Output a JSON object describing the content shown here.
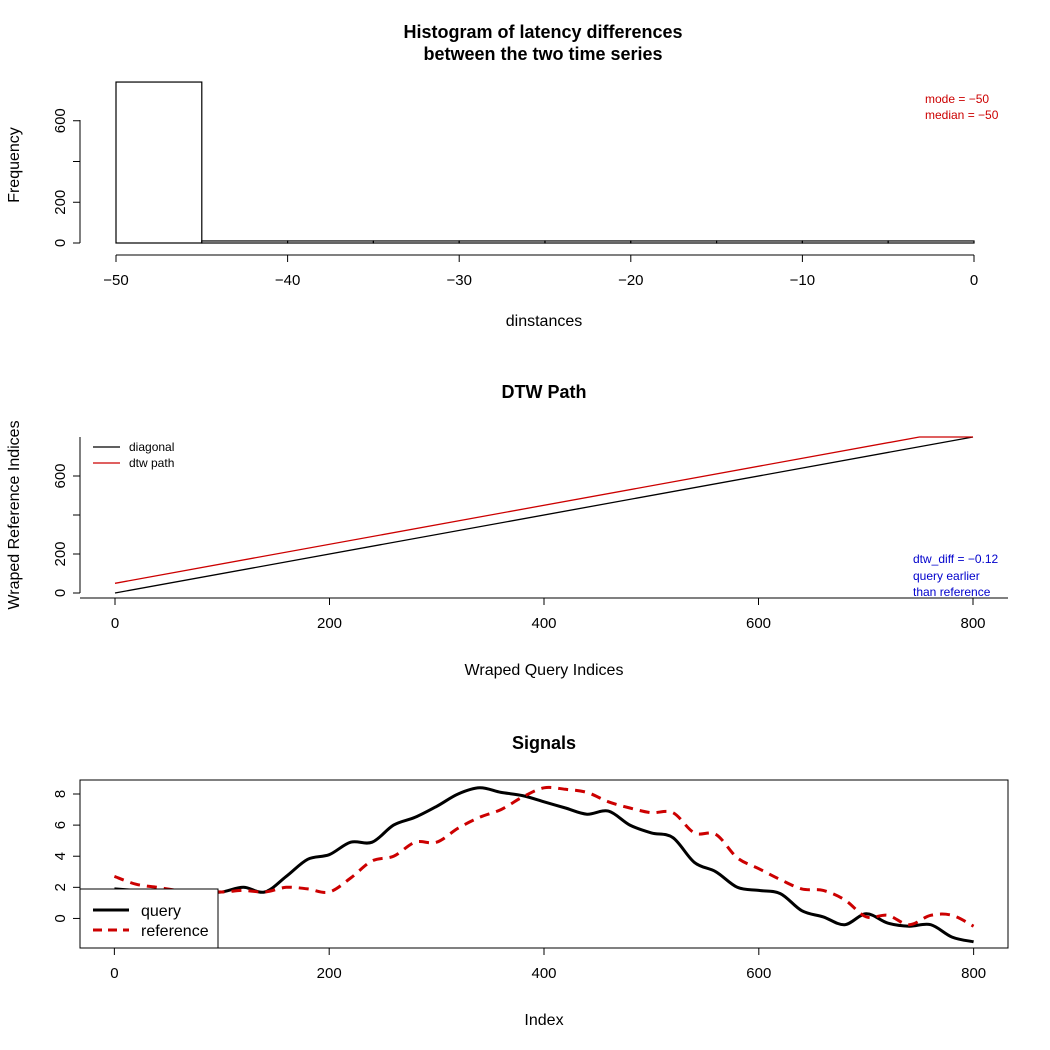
{
  "chart_data": [
    {
      "type": "bar",
      "title_line1": "Histogram of latency differences",
      "title_line2": "between the two time series",
      "xlabel": "dinstances",
      "ylabel": "Frequency",
      "xlim": [
        -50,
        0
      ],
      "ylim": [
        0,
        800
      ],
      "x_ticks": [
        -50,
        -40,
        -30,
        -20,
        -10,
        0
      ],
      "x_tick_labels": [
        "−50",
        "−40",
        "−30",
        "−20",
        "−10",
        "0"
      ],
      "y_ticks": [
        0,
        200,
        400,
        600
      ],
      "y_tick_labels": [
        "0",
        "200",
        "",
        "600"
      ],
      "bins": [
        {
          "from": -50,
          "to": -45,
          "count": 790
        },
        {
          "from": -45,
          "to": -40,
          "count": 10
        },
        {
          "from": -40,
          "to": -35,
          "count": 10
        },
        {
          "from": -35,
          "to": -30,
          "count": 10
        },
        {
          "from": -30,
          "to": -25,
          "count": 10
        },
        {
          "from": -25,
          "to": -20,
          "count": 10
        },
        {
          "from": -20,
          "to": -15,
          "count": 10
        },
        {
          "from": -15,
          "to": -10,
          "count": 10
        },
        {
          "from": -10,
          "to": -5,
          "count": 10
        },
        {
          "from": -5,
          "to": 0,
          "count": 10
        }
      ],
      "annotations": [
        "mode = −50",
        "median = −50"
      ],
      "annotation_color": "#cc0000",
      "bar_fill": "#ffffff",
      "bar_stroke": "#000000",
      "grid": false
    },
    {
      "type": "line",
      "title": "DTW Path",
      "xlabel": "Wraped Query Indices",
      "ylabel": "Wraped Reference Indices",
      "xlim": [
        0,
        800
      ],
      "ylim": [
        0,
        800
      ],
      "x_ticks": [
        0,
        200,
        400,
        600,
        800
      ],
      "x_tick_labels": [
        "0",
        "200",
        "400",
        "600",
        "800"
      ],
      "y_ticks": [
        0,
        200,
        400,
        600
      ],
      "y_tick_labels": [
        "0",
        "200",
        "",
        "600"
      ],
      "series": [
        {
          "name": "diagonal",
          "color": "#000000",
          "x": [
            0,
            800
          ],
          "y": [
            0,
            800
          ]
        },
        {
          "name": "dtw path",
          "color": "#cc0000",
          "x": [
            0,
            750,
            800
          ],
          "y": [
            50,
            800,
            800
          ]
        }
      ],
      "legend_position": "top-left",
      "annotations": [
        "dtw_diff = −0.12",
        "query earlier",
        "than reference"
      ],
      "annotation_color": "#0000cc",
      "grid": false
    },
    {
      "type": "line",
      "title": "Signals",
      "xlabel": "Index",
      "ylabel": "",
      "xlim": [
        -32,
        832
      ],
      "ylim": [
        -1.9,
        8.9
      ],
      "x_ticks": [
        0,
        200,
        400,
        600,
        800
      ],
      "x_tick_labels": [
        "0",
        "200",
        "400",
        "600",
        "800"
      ],
      "y_ticks": [
        0,
        2,
        4,
        6,
        8
      ],
      "y_tick_labels": [
        "0",
        "2",
        "4",
        "6",
        "8"
      ],
      "series": [
        {
          "name": "query",
          "color": "#000000",
          "dash": "solid",
          "x": [
            0,
            20,
            40,
            60,
            80,
            100,
            120,
            140,
            160,
            180,
            200,
            220,
            240,
            260,
            280,
            300,
            320,
            340,
            360,
            380,
            400,
            420,
            440,
            460,
            480,
            500,
            520,
            540,
            560,
            580,
            600,
            620,
            640,
            660,
            680,
            700,
            720,
            740,
            760,
            780,
            800
          ],
          "y": [
            1.9,
            1.8,
            1.7,
            1.8,
            1.7,
            1.7,
            2.0,
            1.7,
            2.7,
            3.8,
            4.1,
            4.9,
            4.9,
            6.0,
            6.5,
            7.2,
            8.0,
            8.4,
            8.1,
            7.9,
            7.5,
            7.1,
            6.7,
            6.9,
            6.0,
            5.5,
            5.2,
            3.6,
            3.0,
            2.0,
            1.8,
            1.6,
            0.5,
            0.1,
            -0.4,
            0.3,
            -0.3,
            -0.5,
            -0.4,
            -1.2,
            -1.5
          ]
        },
        {
          "name": "reference",
          "color": "#cc0000",
          "dash": "dashed",
          "x": [
            0,
            20,
            40,
            60,
            80,
            100,
            120,
            140,
            160,
            180,
            200,
            220,
            240,
            260,
            280,
            300,
            320,
            340,
            360,
            380,
            400,
            420,
            440,
            460,
            480,
            500,
            520,
            540,
            560,
            580,
            600,
            620,
            640,
            660,
            680,
            700,
            720,
            740,
            760,
            780,
            800
          ],
          "y": [
            2.7,
            2.2,
            2.0,
            1.8,
            1.8,
            1.7,
            1.8,
            1.7,
            2.0,
            1.9,
            1.7,
            2.6,
            3.7,
            4.0,
            4.9,
            4.9,
            5.8,
            6.5,
            7.0,
            7.8,
            8.4,
            8.3,
            8.1,
            7.5,
            7.1,
            6.8,
            6.8,
            5.5,
            5.4,
            3.9,
            3.2,
            2.5,
            1.9,
            1.8,
            1.2,
            0.1,
            0.2,
            -0.4,
            0.2,
            0.2,
            -0.5
          ]
        }
      ],
      "legend_position": "bottom-left",
      "grid": false
    }
  ]
}
